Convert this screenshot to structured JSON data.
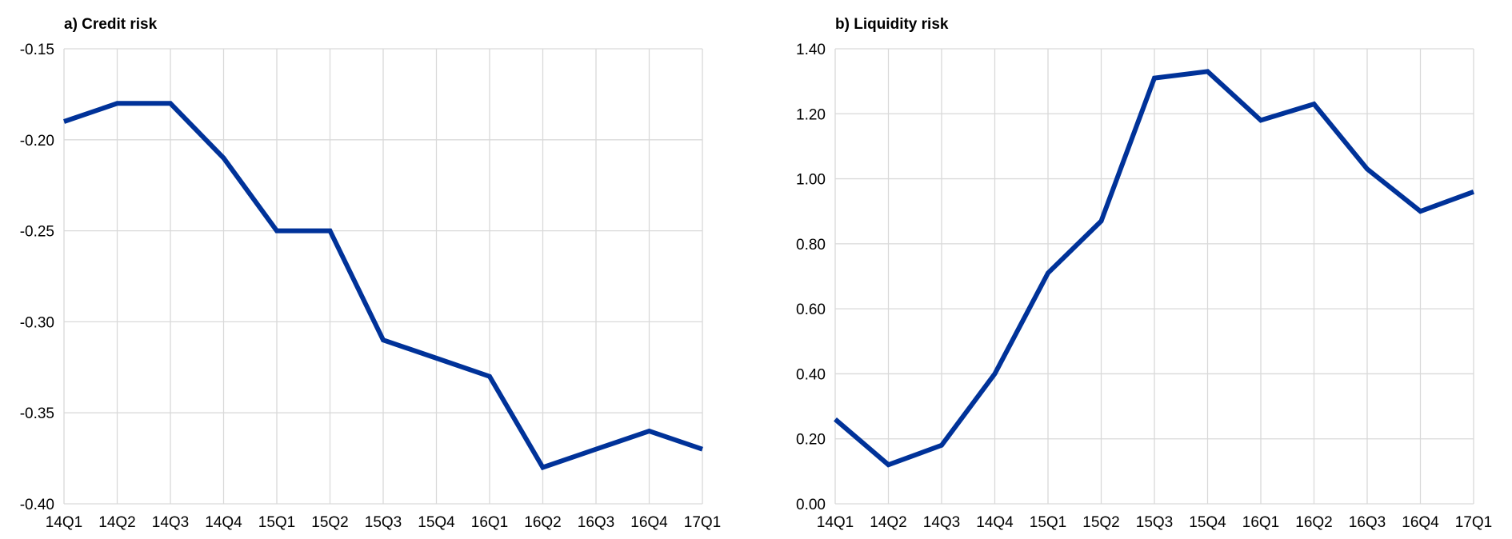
{
  "colors": {
    "series": "#003299",
    "grid": "#d9d9d9",
    "text": "#000000"
  },
  "chart_data": [
    {
      "type": "line",
      "title": "a) Credit risk",
      "xlabel": "",
      "ylabel": "",
      "categories": [
        "14Q1",
        "14Q2",
        "14Q3",
        "14Q4",
        "15Q1",
        "15Q2",
        "15Q3",
        "15Q4",
        "16Q1",
        "16Q2",
        "16Q3",
        "16Q4",
        "17Q1"
      ],
      "series": [
        {
          "values": [
            -0.19,
            -0.18,
            -0.18,
            -0.21,
            -0.25,
            -0.25,
            -0.31,
            -0.32,
            -0.33,
            -0.38,
            -0.37,
            -0.36,
            -0.37
          ]
        }
      ],
      "ylim": [
        -0.4,
        -0.15
      ],
      "yticks": [
        -0.4,
        -0.35,
        -0.3,
        -0.25,
        -0.2,
        -0.15
      ],
      "ytick_labels": [
        "-0.40",
        "-0.35",
        "-0.30",
        "-0.25",
        "-0.20",
        "-0.15"
      ],
      "grid": true,
      "legend": "none"
    },
    {
      "type": "line",
      "title": "b) Liquidity risk",
      "xlabel": "",
      "ylabel": "",
      "categories": [
        "14Q1",
        "14Q2",
        "14Q3",
        "14Q4",
        "15Q1",
        "15Q2",
        "15Q3",
        "15Q4",
        "16Q1",
        "16Q2",
        "16Q3",
        "16Q4",
        "17Q1"
      ],
      "series": [
        {
          "values": [
            0.26,
            0.12,
            0.18,
            0.4,
            0.71,
            0.87,
            1.31,
            1.33,
            1.18,
            1.23,
            1.03,
            0.9,
            0.96
          ]
        }
      ],
      "ylim": [
        0.0,
        1.4
      ],
      "yticks": [
        0.0,
        0.2,
        0.4,
        0.6,
        0.8,
        1.0,
        1.2,
        1.4
      ],
      "ytick_labels": [
        "0.00",
        "0.20",
        "0.40",
        "0.60",
        "0.80",
        "1.00",
        "1.20",
        "1.40"
      ],
      "grid": true,
      "legend": "none"
    }
  ]
}
